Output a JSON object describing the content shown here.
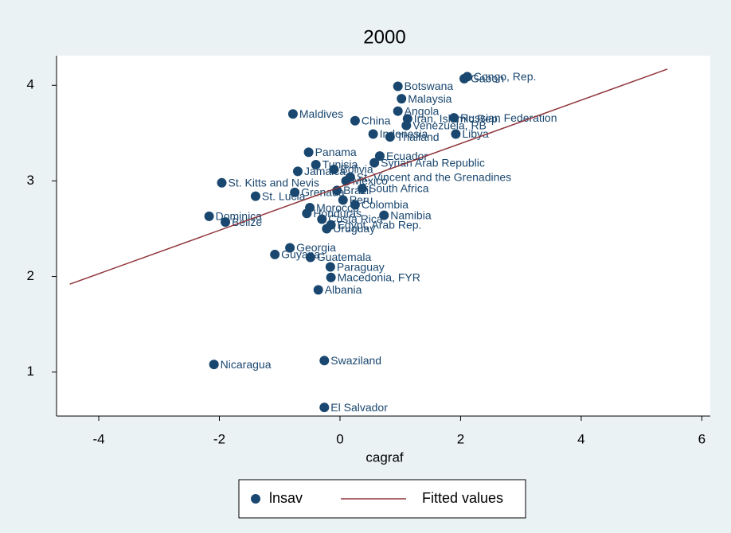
{
  "chart_data": {
    "type": "scatter",
    "title": "2000",
    "x_label": "cagraf",
    "xlim": [
      -4.7,
      6.14
    ],
    "ylim": [
      0.54,
      4.31
    ],
    "xticks": [
      -4,
      -2,
      0,
      2,
      4,
      6
    ],
    "yticks": [
      1,
      2,
      3,
      4
    ],
    "series": [
      {
        "name": "lnsav",
        "style": "markers",
        "color": "#1a476f",
        "labels": [
          "Congo, Rep.",
          "Gabon",
          "Botswana",
          "Malaysia",
          "Angola",
          "Maldives",
          "China",
          "Iran, Islamic Rep.",
          "Russian Federation",
          "Venezuela, RB",
          "Indonesia",
          "Thailand",
          "Libya",
          "Panama",
          "Ecuador",
          "Syrian Arab Republic",
          "St. Vincent and the Grenadines",
          "St. Kitts and Nevis",
          "South Africa",
          "St. Lucia",
          "Colombia",
          "Dominica",
          "Belize",
          "Namibia",
          "Egypt, Arab Rep.",
          "Uruguay",
          "Georgia",
          "Guyana",
          "Guatemala",
          "Paraguay",
          "Macedonia, FYR",
          "Albania",
          "Nicaragua",
          "Swaziland",
          "El Salvador",
          "Tunisia",
          "Jamaica",
          "Bolivia",
          "Peru",
          "Morocco",
          "Costa Rica",
          "Mexico",
          "Honduras",
          "Brazil",
          "Grenada"
        ],
        "x": [
          2.11,
          2.06,
          0.96,
          1.02,
          0.96,
          -0.78,
          0.25,
          1.12,
          1.89,
          1.1,
          0.55,
          0.83,
          1.92,
          -0.52,
          0.66,
          0.57,
          0.17,
          -1.96,
          0.37,
          -1.4,
          0.25,
          -2.17,
          -1.9,
          0.73,
          -0.15,
          -0.22,
          -0.83,
          -1.08,
          -0.49,
          -0.16,
          -0.15,
          -0.36,
          -2.09,
          -0.26,
          -0.26,
          -0.4,
          -0.7,
          -0.1,
          0.05,
          -0.5,
          -0.3,
          0.1,
          -0.55,
          -0.05,
          -0.75
        ],
        "values": [
          4.09,
          4.07,
          3.99,
          3.86,
          3.73,
          3.7,
          3.63,
          3.65,
          3.66,
          3.58,
          3.49,
          3.46,
          3.49,
          3.3,
          3.26,
          3.19,
          3.04,
          2.98,
          2.92,
          2.84,
          2.75,
          2.63,
          2.57,
          2.64,
          2.54,
          2.5,
          2.3,
          2.23,
          2.2,
          2.1,
          1.99,
          1.86,
          1.08,
          1.12,
          0.63,
          3.17,
          3.1,
          3.12,
          2.8,
          2.72,
          2.6,
          3.0,
          2.66,
          2.9,
          2.88
        ]
      },
      {
        "name": "Fitted values",
        "style": "line",
        "color": "#90353b",
        "x": [
          -4.48,
          5.43
        ],
        "values": [
          1.92,
          4.17
        ]
      }
    ]
  }
}
